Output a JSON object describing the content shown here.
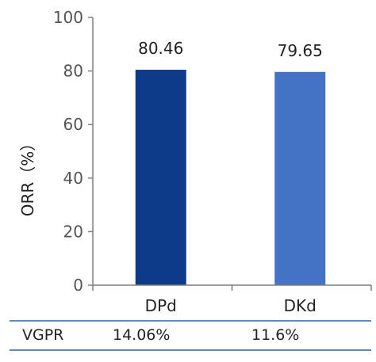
{
  "chart_data": {
    "type": "bar",
    "categories": [
      "DPd",
      "DKd"
    ],
    "values": [
      80.46,
      79.65
    ],
    "data_labels": [
      "80.46",
      "79.65"
    ],
    "bar_colors": [
      "#0e3a8a",
      "#4472c4"
    ],
    "ylabel": "ORR（%）",
    "xlabel": "",
    "ylim": [
      0,
      100
    ],
    "yticks": [
      0,
      20,
      40,
      60,
      80,
      100
    ],
    "grid": false
  },
  "table": {
    "row_label": "VGPR",
    "values": [
      "14.06%",
      "11.6%"
    ]
  },
  "colors": {
    "axis": "#7f7f7f",
    "table_rule": "#5b88c6"
  }
}
